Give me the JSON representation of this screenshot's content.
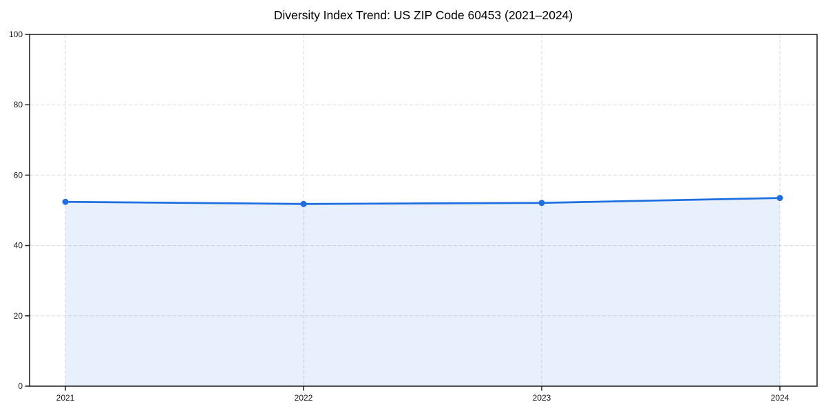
{
  "chart_data": {
    "type": "area",
    "title": "Diversity Index Trend: US ZIP Code 60453 (2021–2024)",
    "categories": [
      "2021",
      "2022",
      "2023",
      "2024"
    ],
    "values": [
      52.4,
      51.8,
      52.1,
      53.5
    ],
    "series_name": "Diversity Index",
    "xlabel": "",
    "ylabel": "",
    "ylim": [
      0,
      100
    ],
    "yticks": [
      0,
      20,
      40,
      60,
      80,
      100
    ],
    "grid": "dashed-both-axes",
    "legend": "none",
    "marker": "circle",
    "colors": {
      "line": "#1f6fe0",
      "fill": "rgba(31, 111, 224, 0.10)",
      "grid": "#dadada",
      "axis": "#1a1a1a",
      "text": "#000000",
      "background": "#ffffff"
    }
  }
}
